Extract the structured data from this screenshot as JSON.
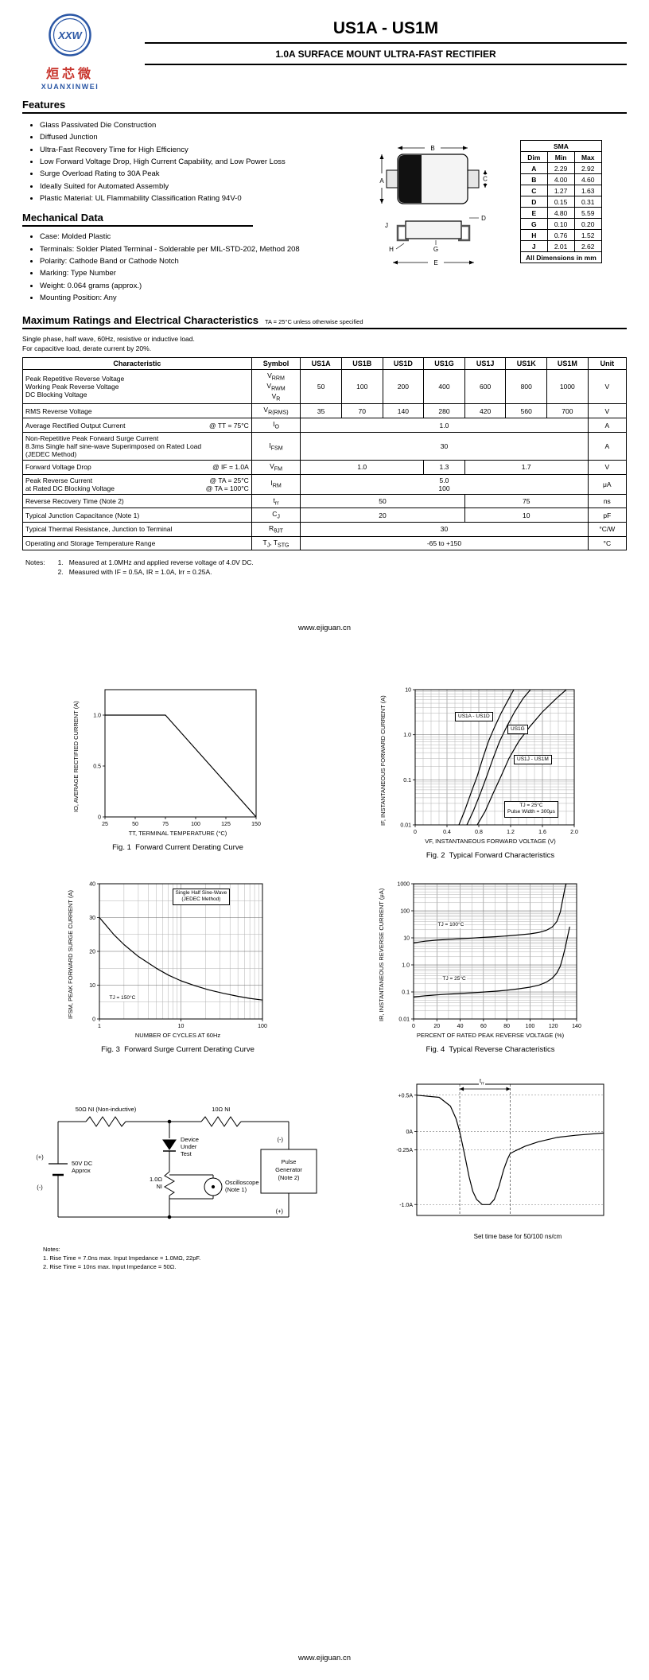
{
  "header": {
    "logo_monogram": "XXW",
    "logo_cn": "烜芯微",
    "logo_en": "XUANXINWEI",
    "part_number": "US1A - US1M",
    "subtitle": "1.0A SURFACE MOUNT ULTRA-FAST RECTIFIER"
  },
  "features": {
    "heading": "Features",
    "items": [
      "Glass Passivated Die Construction",
      "Diffused Junction",
      "Ultra-Fast Recovery Time for High Efficiency",
      "Low Forward Voltage Drop, High Current Capability, and Low Power Loss",
      "Surge Overload Rating to 30A Peak",
      "Ideally Suited for Automated Assembly",
      "Plastic Material: UL Flammability Classification Rating 94V-0"
    ]
  },
  "mechanical": {
    "heading": "Mechanical Data",
    "items": [
      "Case: Molded Plastic",
      "Terminals: Solder Plated Terminal - Solderable per MIL-STD-202, Method 208",
      "Polarity: Cathode Band or Cathode Notch",
      "Marking: Type Number",
      "Weight: 0.064 grams (approx.)",
      "Mounting Position: Any"
    ]
  },
  "package": {
    "title": "SMA",
    "columns": [
      "Dim",
      "Min",
      "Max"
    ],
    "rows": [
      [
        "A",
        "2.29",
        "2.92"
      ],
      [
        "B",
        "4.00",
        "4.60"
      ],
      [
        "C",
        "1.27",
        "1.63"
      ],
      [
        "D",
        "0.15",
        "0.31"
      ],
      [
        "E",
        "4.80",
        "5.59"
      ],
      [
        "G",
        "0.10",
        "0.20"
      ],
      [
        "H",
        "0.76",
        "1.52"
      ],
      [
        "J",
        "2.01",
        "2.62"
      ]
    ],
    "footer": "All Dimensions in mm",
    "letters": [
      "A",
      "B",
      "C",
      "D",
      "E",
      "G",
      "H",
      "J"
    ]
  },
  "ratings": {
    "heading": "Maximum Ratings and Electrical Characteristics",
    "headnote": "TA = 25°C unless otherwise specified",
    "intro1": "Single phase, half wave, 60Hz, resistive or inductive load.",
    "intro2": "For capacitive load, derate current by 20%.",
    "columns": [
      "Characteristic",
      "Symbol",
      "US1A",
      "US1B",
      "US1D",
      "US1G",
      "US1J",
      "US1K",
      "US1M",
      "Unit"
    ],
    "rows": {
      "vrrm": {
        "lines": [
          "Peak Repetitive Reverse Voltage",
          "Working Peak Reverse Voltage",
          "DC Blocking Voltage"
        ],
        "sym": [
          {
            "b": "V",
            "s": "RRM"
          },
          {
            "b": "V",
            "s": "RWM"
          },
          {
            "b": "V",
            "s": "R"
          }
        ],
        "v": [
          "50",
          "100",
          "200",
          "400",
          "600",
          "800",
          "1000"
        ],
        "unit": "V"
      },
      "vrms": {
        "label": "RMS Reverse Voltage",
        "sym": {
          "b": "V",
          "s": "R(RMS)"
        },
        "v": [
          "35",
          "70",
          "140",
          "280",
          "420",
          "560",
          "700"
        ],
        "unit": "V"
      },
      "io": {
        "label": "Average Rectified Output Current",
        "cond": "@ TT = 75°C",
        "sym": {
          "b": "I",
          "s": "O"
        },
        "v": "1.0",
        "unit": "A"
      },
      "ifsm": {
        "lines": [
          "Non-Repetitive Peak Forward Surge Current",
          "8.3ms Single half sine-wave Superimposed on Rated Load",
          "(JEDEC Method)"
        ],
        "sym": {
          "b": "I",
          "s": "FSM"
        },
        "v": "30",
        "unit": "A"
      },
      "vfm": {
        "label": "Forward Voltage Drop",
        "cond": "@ IF = 1.0A",
        "sym": {
          "b": "V",
          "s": "FM"
        },
        "v": [
          "1.0",
          "1.3",
          "1.7"
        ],
        "unit": "V"
      },
      "irm": {
        "lines": [
          "Peak Reverse Current",
          "at Rated DC Blocking Voltage"
        ],
        "conds": [
          "@ TA =  25°C",
          "@ TA = 100°C"
        ],
        "sym": {
          "b": "I",
          "s": "RM"
        },
        "v": [
          "5.0",
          "100"
        ],
        "unit": "μA"
      },
      "trr": {
        "label": "Reverse Recovery Time (Note 2)",
        "sym": {
          "b": "t",
          "s": "rr"
        },
        "v": [
          "50",
          "75"
        ],
        "unit": "ns"
      },
      "cj": {
        "label": "Typical Junction Capacitance (Note 1)",
        "sym": {
          "b": "C",
          "s": "J"
        },
        "v": [
          "20",
          "10"
        ],
        "unit": "pF"
      },
      "rth": {
        "label": "Typical Thermal Resistance, Junction to Terminal",
        "sym": {
          "b": "R",
          "s": "θJT"
        },
        "v": "30",
        "unit": "°C/W"
      },
      "temp": {
        "label": "Operating and Storage Temperature Range",
        "sym": [
          {
            "b": "T",
            "s": "J"
          },
          {
            "b": ", T",
            "s": "STG"
          }
        ],
        "v": "-65 to +150",
        "unit": "°C"
      }
    }
  },
  "notes": {
    "label": "Notes:",
    "items": [
      "1.   Measured at 1.0MHz and applied reverse voltage of 4.0V DC.",
      "2.   Measured with IF = 0.5A, IR = 1.0A, Irr = 0.25A."
    ]
  },
  "links": {
    "mid": "www.ejiguan.cn",
    "footer": "www.ejiguan.cn"
  },
  "circuit": {
    "labels": {
      "r1": "50Ω NI (Non-inductive)",
      "r2": "10Ω NI",
      "plus_left": "(+)",
      "minus_left": "(-)",
      "supply1": "50V DC",
      "supply2": "Approx",
      "dut1": "Device",
      "dut2": "Under",
      "dut3": "Test",
      "r3a": "1.0Ω",
      "r3b": "NI",
      "scope1": "Oscilloscope",
      "scope2": "(Note 1)",
      "pg1": "Pulse",
      "pg2": "Generator",
      "pg3": "(Note 2)",
      "minus_right": "(-)",
      "plus_right": "(+)"
    },
    "notes_label": "Notes:",
    "notes": [
      "1. Rise Time = 7.0ns max. Input Impedance = 1.0MΩ, 22pF.",
      "2. Rise Time = 10ns max. Input Impedance = 50Ω."
    ]
  },
  "chart_data": [
    {
      "id": "fig1",
      "type": "line",
      "title": "Fig. 1  Forward Current Derating Curve",
      "xlabel": "TT, TERMINAL TEMPERATURE (°C)",
      "ylabel": "IO, AVERAGE RECTIFIED CURRENT (A)",
      "xscale": "linear",
      "xlim": [
        25,
        150
      ],
      "xticks": [
        25,
        50,
        75,
        100,
        125,
        150
      ],
      "xtick_labels": [
        "25",
        "50",
        "75",
        "100",
        "125",
        "150"
      ],
      "yscale": "linear",
      "ylim": [
        0,
        1.25
      ],
      "yticks": [
        0,
        0.5,
        1.0
      ],
      "ytick_labels": [
        "0",
        "0.5",
        "1.0"
      ],
      "grid": false,
      "series": [
        {
          "name": "average rectified current",
          "points": [
            [
              25,
              1.0
            ],
            [
              75,
              1.0
            ],
            [
              150,
              0
            ]
          ]
        }
      ]
    },
    {
      "id": "fig2",
      "type": "line",
      "title": "Fig. 2  Typical Forward Characteristics",
      "xlabel": "VF, INSTANTANEOUS FORWARD VOLTAGE (V)",
      "ylabel": "IF, INSTANTANEOUS FORWARD CURRENT (A)",
      "xscale": "linear",
      "xlim": [
        0,
        2
      ],
      "xminor": 0.1,
      "xticks": [
        0,
        0.4,
        0.8,
        1.2,
        1.6,
        2.0
      ],
      "xtick_labels": [
        "0",
        "0.4",
        "0.8",
        "1.2",
        "1.6",
        "2.0"
      ],
      "yscale": "log",
      "ylim": [
        0.01,
        10
      ],
      "yticks": [
        0.01,
        0.1,
        1,
        10
      ],
      "ytick_labels": [
        "0.01",
        "0.1",
        "1.0",
        "10"
      ],
      "labels": {
        "d1": "US1A - US1D",
        "d2": "US1G",
        "d3": "US1J - US1M",
        "note1": "TJ = 25°C",
        "note2": "Pulse Width = 300μs"
      },
      "series": [
        {
          "name": "US1A - US1D",
          "points": [
            [
              0.55,
              0.01
            ],
            [
              0.62,
              0.02
            ],
            [
              0.7,
              0.05
            ],
            [
              0.78,
              0.12
            ],
            [
              0.85,
              0.3
            ],
            [
              0.92,
              0.7
            ],
            [
              1.0,
              1.5
            ],
            [
              1.08,
              3.0
            ],
            [
              1.16,
              5.5
            ],
            [
              1.24,
              10
            ]
          ]
        },
        {
          "name": "US1G",
          "points": [
            [
              0.65,
              0.01
            ],
            [
              0.73,
              0.02
            ],
            [
              0.82,
              0.05
            ],
            [
              0.9,
              0.12
            ],
            [
              0.98,
              0.3
            ],
            [
              1.06,
              0.7
            ],
            [
              1.15,
              1.5
            ],
            [
              1.25,
              3.2
            ],
            [
              1.36,
              6.5
            ],
            [
              1.45,
              10
            ]
          ]
        },
        {
          "name": "US1J - US1M",
          "points": [
            [
              0.78,
              0.01
            ],
            [
              0.88,
              0.02
            ],
            [
              0.98,
              0.05
            ],
            [
              1.08,
              0.12
            ],
            [
              1.18,
              0.3
            ],
            [
              1.3,
              0.7
            ],
            [
              1.44,
              1.5
            ],
            [
              1.6,
              3.2
            ],
            [
              1.78,
              6.5
            ],
            [
              1.9,
              10
            ]
          ]
        }
      ]
    },
    {
      "id": "fig3",
      "type": "line",
      "title": "Fig. 3  Forward Surge Current Derating Curve",
      "xlabel": "NUMBER OF CYCLES AT 60Hz",
      "ylabel": "IFSM, PEAK FORWARD SURGE CURRENT (A)",
      "xscale": "log",
      "xlim": [
        1,
        100
      ],
      "xticks": [
        1,
        10,
        100
      ],
      "xtick_labels": [
        "1",
        "10",
        "100"
      ],
      "yscale": "linear",
      "ylim": [
        0,
        40
      ],
      "yminor": 5,
      "yticks": [
        0,
        10,
        20,
        30,
        40
      ],
      "ytick_labels": [
        "0",
        "10",
        "20",
        "30",
        "40"
      ],
      "labels": {
        "note1": "Single Half Sine-Wave",
        "note2": "(JEDEC Method)",
        "temp": "TJ = 150°C"
      },
      "series": [
        {
          "name": "peak forward surge current",
          "points": [
            [
              1,
              30
            ],
            [
              1.5,
              25
            ],
            [
              2,
              22
            ],
            [
              3,
              18.5
            ],
            [
              5,
              15
            ],
            [
              7,
              13
            ],
            [
              10,
              11.3
            ],
            [
              15,
              9.8
            ],
            [
              22,
              8.6
            ],
            [
              33,
              7.6
            ],
            [
              50,
              6.7
            ],
            [
              70,
              6.1
            ],
            [
              100,
              5.6
            ]
          ]
        }
      ]
    },
    {
      "id": "fig4",
      "type": "line",
      "title": "Fig. 4  Typical Reverse Characteristics",
      "xlabel": "PERCENT OF RATED PEAK REVERSE VOLTAGE (%)",
      "ylabel": "IR, INSTANTANEOUS REVERSE CURRENT (μA)",
      "xscale": "linear",
      "xlim": [
        0,
        140
      ],
      "xminor": 10,
      "xticks": [
        0,
        20,
        40,
        60,
        80,
        100,
        120,
        140
      ],
      "xtick_labels": [
        "0",
        "20",
        "40",
        "60",
        "80",
        "100",
        "120",
        "140"
      ],
      "yscale": "log",
      "ylim": [
        0.01,
        1000
      ],
      "yticks": [
        0.01,
        0.1,
        1,
        10,
        100,
        1000
      ],
      "ytick_labels": [
        "0.01",
        "0.1",
        "1.0",
        "10",
        "100",
        "1000"
      ],
      "labels": {
        "t100": "TJ = 100°C",
        "t25": "TJ = 25°C"
      },
      "series": [
        {
          "name": "TJ = 100°C",
          "points": [
            [
              0,
              6.5
            ],
            [
              10,
              7.5
            ],
            [
              20,
              8.2
            ],
            [
              30,
              8.8
            ],
            [
              40,
              9.3
            ],
            [
              50,
              9.8
            ],
            [
              60,
              10.4
            ],
            [
              70,
              11
            ],
            [
              80,
              11.8
            ],
            [
              90,
              12.8
            ],
            [
              100,
              14
            ],
            [
              108,
              16
            ],
            [
              114,
              19
            ],
            [
              119,
              25
            ],
            [
              123,
              40
            ],
            [
              126,
              90
            ],
            [
              128,
              250
            ],
            [
              130,
              700
            ],
            [
              131,
              1000
            ]
          ]
        },
        {
          "name": "TJ = 25°C",
          "points": [
            [
              0,
              0.065
            ],
            [
              10,
              0.072
            ],
            [
              20,
              0.078
            ],
            [
              30,
              0.083
            ],
            [
              40,
              0.088
            ],
            [
              50,
              0.093
            ],
            [
              60,
              0.099
            ],
            [
              70,
              0.106
            ],
            [
              80,
              0.115
            ],
            [
              90,
              0.13
            ],
            [
              100,
              0.15
            ],
            [
              108,
              0.18
            ],
            [
              114,
              0.23
            ],
            [
              119,
              0.32
            ],
            [
              123,
              0.5
            ],
            [
              126,
              0.9
            ],
            [
              128,
              1.8
            ],
            [
              130,
              4
            ],
            [
              132,
              10
            ],
            [
              134,
              25
            ]
          ]
        }
      ]
    },
    {
      "id": "fig5",
      "type": "line",
      "caption": "Set time base for 50/100 ns/cm",
      "xscale": "linear",
      "xlim": [
        0,
        10
      ],
      "yscale": "linear",
      "ylim": [
        -1.15,
        0.65
      ],
      "ytick_values": [
        0.5,
        0,
        -0.25,
        -1.0
      ],
      "ytick_labels": [
        "+0.5A",
        "0A",
        "-0.25A",
        "-1.0A"
      ],
      "grid": false,
      "hdash": true,
      "box": true,
      "vlines": [
        2.3,
        5.0
      ],
      "arrow_span": [
        2.3,
        5.0
      ],
      "labels": {
        "trr_b": "t",
        "trr_s": "rr"
      },
      "series": [
        {
          "name": "reverse recovery waveform",
          "points": [
            [
              0,
              0.5
            ],
            [
              1.2,
              0.47
            ],
            [
              1.8,
              0.35
            ],
            [
              2.1,
              0.18
            ],
            [
              2.3,
              0
            ],
            [
              2.55,
              -0.3
            ],
            [
              2.8,
              -0.62
            ],
            [
              3.0,
              -0.82
            ],
            [
              3.2,
              -0.93
            ],
            [
              3.5,
              -1.0
            ],
            [
              3.9,
              -1.0
            ],
            [
              4.15,
              -0.93
            ],
            [
              4.4,
              -0.75
            ],
            [
              4.65,
              -0.52
            ],
            [
              4.85,
              -0.38
            ],
            [
              5.0,
              -0.3
            ],
            [
              5.3,
              -0.26
            ],
            [
              5.8,
              -0.2
            ],
            [
              6.5,
              -0.14
            ],
            [
              7.5,
              -0.08
            ],
            [
              8.5,
              -0.05
            ],
            [
              10,
              -0.02
            ]
          ]
        }
      ]
    }
  ]
}
